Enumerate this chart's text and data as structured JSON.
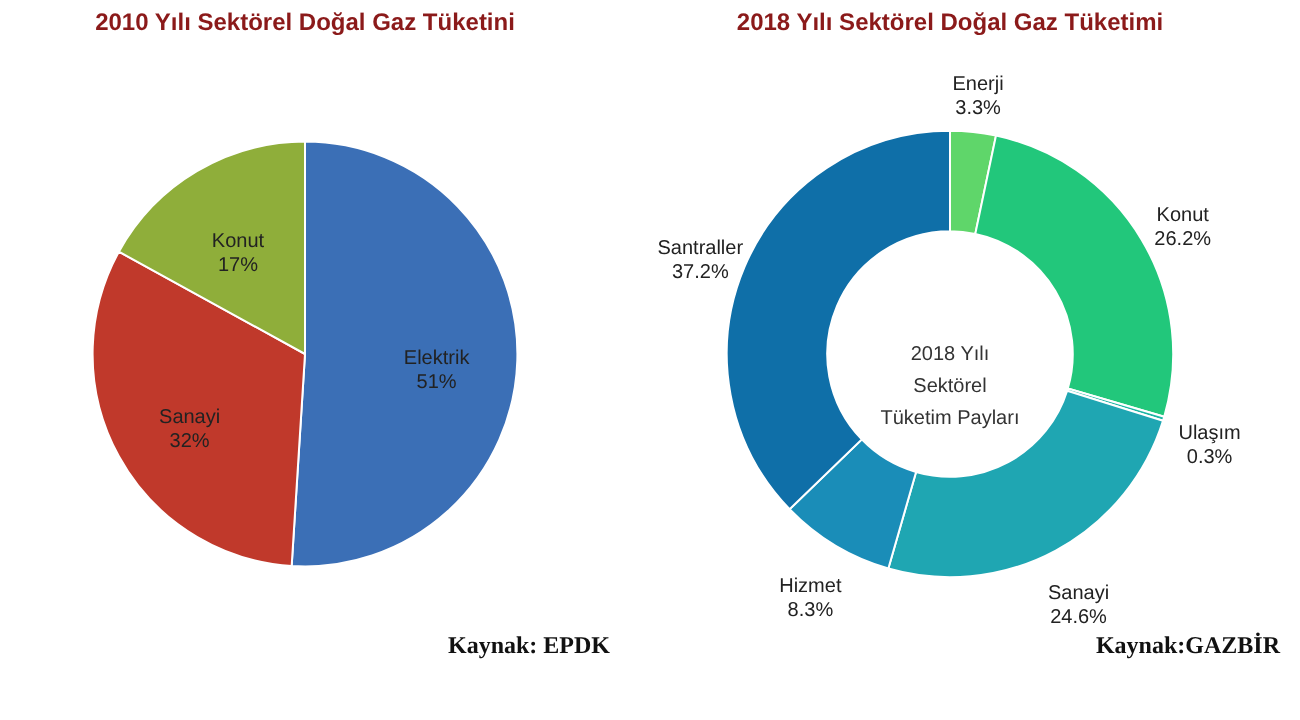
{
  "chart_data": [
    {
      "type": "pie",
      "title": "2010 Yılı Sektörel Doğal Gaz Tüketini",
      "categories": [
        "Elektrik",
        "Sanayi",
        "Konut"
      ],
      "values": [
        51,
        32,
        17
      ],
      "value_labels": [
        "51%",
        "32%",
        "17%"
      ],
      "colors": [
        "#3b6fb6",
        "#c0392b",
        "#8fae3a"
      ],
      "legend": false,
      "annotations": [
        "Kaynak: EPDK"
      ]
    },
    {
      "type": "donut",
      "title": "2018 Yılı Sektörel Doğal Gaz Tüketimi",
      "categories": [
        "Enerji",
        "Konut",
        "Ulaşım",
        "Sanayi",
        "Hizmet",
        "Santraller"
      ],
      "values": [
        3.3,
        26.2,
        0.3,
        24.6,
        8.3,
        37.2
      ],
      "value_labels": [
        "3.3%",
        "26.2%",
        "0.3%",
        "24.6%",
        "8.3%",
        "37.2%"
      ],
      "colors": [
        "#5fd66a",
        "#22c77b",
        "#1bb5a3",
        "#1fa6b2",
        "#1a8db8",
        "#0f6fa8"
      ],
      "legend": false,
      "annotations": [
        "2018 Yılı Sektörel Tüketim Payları",
        "Kaynak:GAZBİR"
      ]
    }
  ]
}
